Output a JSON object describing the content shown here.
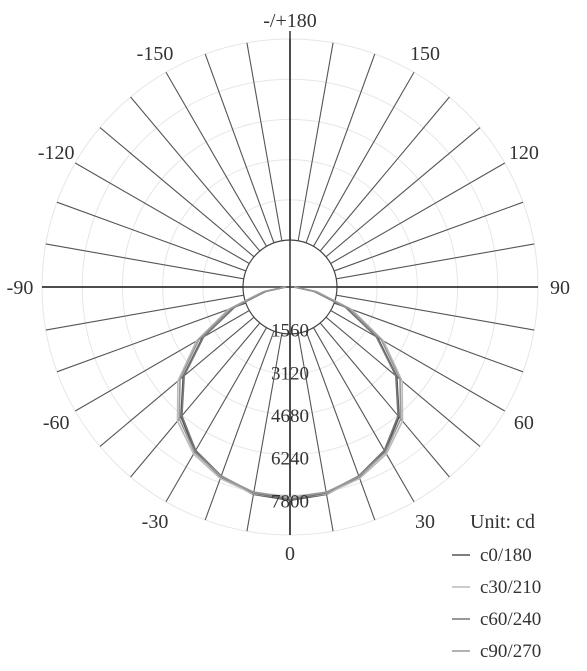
{
  "chart_data": {
    "type": "polar-line",
    "title": "",
    "unit_label": "Unit: cd",
    "angle_labels": [
      {
        "deg": 180,
        "text": "-/+180"
      },
      {
        "deg": -150,
        "text": "-150"
      },
      {
        "deg": 150,
        "text": "150"
      },
      {
        "deg": -120,
        "text": "-120"
      },
      {
        "deg": 120,
        "text": "120"
      },
      {
        "deg": -90,
        "text": "-90"
      },
      {
        "deg": 90,
        "text": "90"
      },
      {
        "deg": -60,
        "text": "-60"
      },
      {
        "deg": 60,
        "text": "60"
      },
      {
        "deg": -30,
        "text": "-30"
      },
      {
        "deg": 30,
        "text": "30"
      },
      {
        "deg": 0,
        "text": "0"
      }
    ],
    "radial_ticks": [
      1560,
      3120,
      4680,
      6240,
      7800
    ],
    "radial_tick_labels": [
      "1560",
      "3120",
      "4680",
      "6240",
      "7800"
    ],
    "radial_max": 7800,
    "grid": true,
    "legend_position": "bottom-right",
    "series": [
      {
        "name": "c0/180",
        "color": "#555555",
        "angles": [
          0,
          10,
          20,
          30,
          40,
          50,
          60,
          70,
          80,
          90
        ],
        "values": [
          7800,
          7700,
          7400,
          6950,
          6200,
          5100,
          3700,
          2200,
          900,
          150
        ]
      },
      {
        "name": "c30/210",
        "color": "#bbbbbb",
        "angles": [
          0,
          10,
          20,
          30,
          40,
          50,
          60,
          70,
          80,
          90
        ],
        "values": [
          7750,
          7680,
          7450,
          7050,
          6400,
          5350,
          3950,
          2400,
          1000,
          160
        ]
      },
      {
        "name": "c60/240",
        "color": "#777777",
        "angles": [
          0,
          10,
          20,
          30,
          40,
          50,
          60,
          70,
          80,
          90
        ],
        "values": [
          7780,
          7650,
          7350,
          6900,
          6150,
          5050,
          3650,
          2150,
          880,
          150
        ]
      },
      {
        "name": "c90/270",
        "color": "#999999",
        "angles": [
          0,
          10,
          20,
          30,
          40,
          50,
          60,
          70,
          80,
          90
        ],
        "values": [
          7700,
          7620,
          7380,
          6980,
          6300,
          5250,
          3850,
          2300,
          950,
          155
        ]
      }
    ]
  }
}
